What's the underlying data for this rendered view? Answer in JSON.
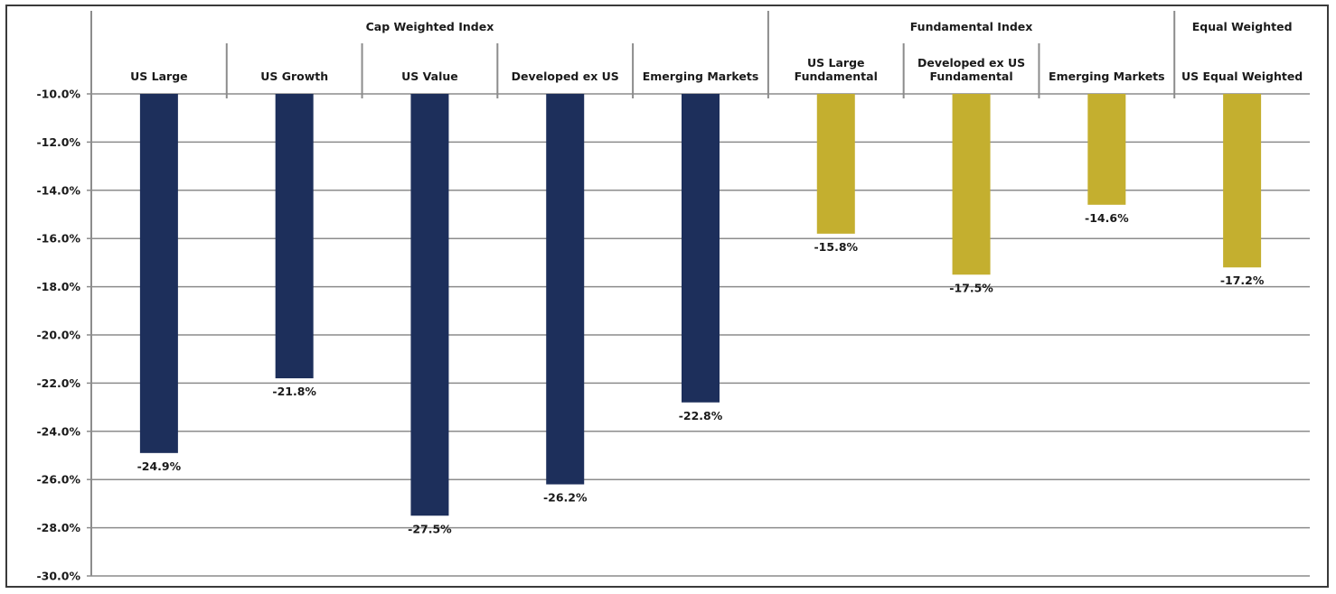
{
  "chart_data": {
    "type": "bar",
    "groups": [
      {
        "label": "Cap Weighted Index",
        "span": [
          0,
          4
        ],
        "color": "#1d2f5b"
      },
      {
        "label": "Fundamental Index",
        "span": [
          5,
          7
        ],
        "color": "#c4af2f"
      },
      {
        "label": "Equal Weighted",
        "span": [
          8,
          8
        ],
        "color": "#c4af2f"
      }
    ],
    "categories": [
      [
        "US Large"
      ],
      [
        "US Growth"
      ],
      [
        "US Value"
      ],
      [
        "Developed ex US"
      ],
      [
        "Emerging Markets"
      ],
      [
        "US Large",
        "Fundamental"
      ],
      [
        "Developed ex US",
        "Fundamental"
      ],
      [
        "Emerging Markets"
      ],
      [
        "US Equal Weighted"
      ]
    ],
    "values": [
      -24.9,
      -21.8,
      -27.5,
      -26.2,
      -22.8,
      -15.8,
      -17.5,
      -14.6,
      -17.2
    ],
    "value_labels": [
      "-24.9%",
      "-21.8%",
      "-27.5%",
      "-26.2%",
      "-22.8%",
      "-15.8%",
      "-17.5%",
      "-14.6%",
      "-17.2%"
    ],
    "ylim": [
      -30,
      -10
    ],
    "y_ticks": [
      -10,
      -12,
      -14,
      -16,
      -18,
      -20,
      -22,
      -24,
      -26,
      -28,
      -30
    ],
    "y_tick_labels": [
      "-10.0%",
      "-12.0%",
      "-14.0%",
      "-16.0%",
      "-18.0%",
      "-20.0%",
      "-22.0%",
      "-24.0%",
      "-26.0%",
      "-28.0%",
      "-30.0%"
    ],
    "grid": true,
    "legend": "none",
    "title": "",
    "xlabel": "",
    "ylabel": ""
  }
}
